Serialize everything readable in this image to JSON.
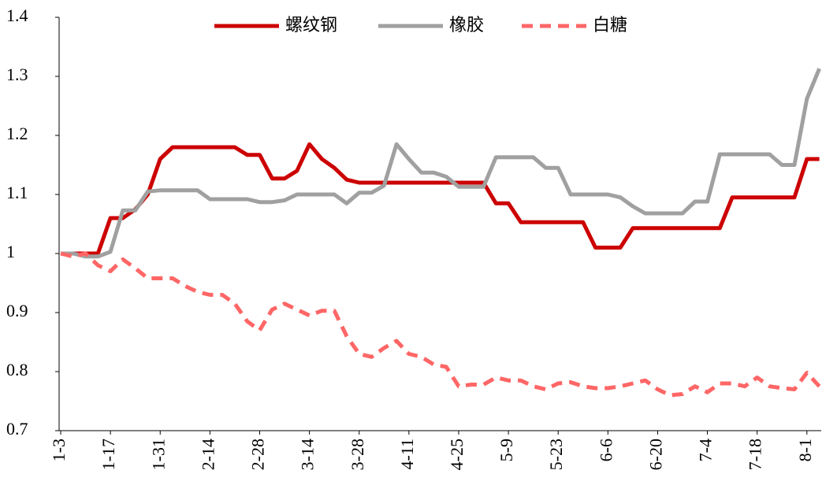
{
  "chart_data": {
    "type": "line",
    "categories": [
      "1-3",
      null,
      null,
      null,
      "1-17",
      null,
      null,
      null,
      "1-31",
      null,
      null,
      null,
      "2-14",
      null,
      null,
      null,
      "2-28",
      null,
      null,
      null,
      "3-14",
      null,
      null,
      null,
      "3-28",
      null,
      null,
      null,
      "4-11",
      null,
      null,
      null,
      "4-25",
      null,
      null,
      null,
      "5-9",
      null,
      null,
      null,
      "5-23",
      null,
      null,
      null,
      "6-6",
      null,
      null,
      null,
      "6-20",
      null,
      null,
      null,
      "7-4",
      null,
      null,
      null,
      "7-18",
      null,
      null,
      null,
      "8-1",
      null
    ],
    "series": [
      {
        "name": "螺纹钢",
        "color": "#cc0000",
        "dash": false,
        "values": [
          1.0,
          1.0,
          1.0,
          1.0,
          1.06,
          1.06,
          1.075,
          1.1,
          1.16,
          1.18,
          1.18,
          1.18,
          1.18,
          1.18,
          1.18,
          1.167,
          1.167,
          1.127,
          1.127,
          1.14,
          1.185,
          1.16,
          1.145,
          1.125,
          1.12,
          1.12,
          1.12,
          1.12,
          1.12,
          1.12,
          1.12,
          1.12,
          1.12,
          1.12,
          1.12,
          1.085,
          1.085,
          1.053,
          1.053,
          1.053,
          1.053,
          1.053,
          1.053,
          1.01,
          1.01,
          1.01,
          1.043,
          1.043,
          1.043,
          1.043,
          1.043,
          1.043,
          1.043,
          1.043,
          1.095,
          1.095,
          1.095,
          1.095,
          1.095,
          1.095,
          1.16,
          1.16
        ]
      },
      {
        "name": "橡胶",
        "color": "#a0a0a0",
        "dash": false,
        "values": [
          1.0,
          1.0,
          0.995,
          0.995,
          1.003,
          1.073,
          1.073,
          1.105,
          1.107,
          1.107,
          1.107,
          1.107,
          1.092,
          1.092,
          1.092,
          1.092,
          1.087,
          1.087,
          1.09,
          1.1,
          1.1,
          1.1,
          1.1,
          1.085,
          1.103,
          1.103,
          1.115,
          1.185,
          1.16,
          1.137,
          1.137,
          1.13,
          1.113,
          1.113,
          1.113,
          1.163,
          1.163,
          1.163,
          1.163,
          1.145,
          1.145,
          1.1,
          1.1,
          1.1,
          1.1,
          1.095,
          1.08,
          1.068,
          1.068,
          1.068,
          1.068,
          1.088,
          1.088,
          1.168,
          1.168,
          1.168,
          1.168,
          1.168,
          1.15,
          1.15,
          1.262,
          1.313
        ]
      },
      {
        "name": "白糖",
        "color": "#ff6666",
        "dash": true,
        "values": [
          1.0,
          0.995,
          1.0,
          0.98,
          0.97,
          0.99,
          0.975,
          0.958,
          0.958,
          0.958,
          0.945,
          0.935,
          0.93,
          0.93,
          0.915,
          0.885,
          0.87,
          0.905,
          0.915,
          0.905,
          0.895,
          0.903,
          0.903,
          0.86,
          0.83,
          0.825,
          0.84,
          0.852,
          0.83,
          0.825,
          0.812,
          0.808,
          0.775,
          0.778,
          0.778,
          0.79,
          0.785,
          0.785,
          0.775,
          0.77,
          0.78,
          0.782,
          0.775,
          0.772,
          0.772,
          0.775,
          0.78,
          0.785,
          0.77,
          0.76,
          0.762,
          0.775,
          0.765,
          0.78,
          0.78,
          0.775,
          0.79,
          0.775,
          0.772,
          0.77,
          0.798,
          0.775
        ]
      }
    ],
    "ylim": [
      0.7,
      1.4
    ],
    "yticks": [
      0.7,
      0.8,
      0.9,
      1,
      1.1,
      1.2,
      1.3,
      1.4
    ],
    "grid": false,
    "legend": "top"
  }
}
